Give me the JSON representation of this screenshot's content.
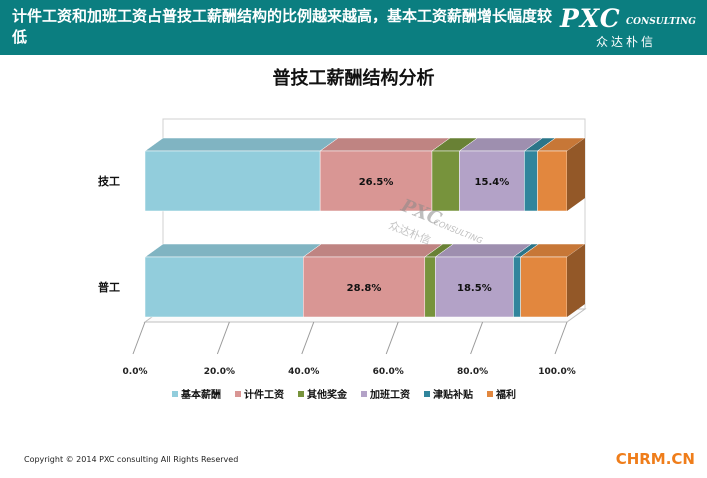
{
  "header": {
    "title": "计件工资和加班工资占普技工薪酬结构的比例越来越高，基本工资薪酬增长幅度较低",
    "logo_main": "PXC",
    "logo_sub": "CONSULTING",
    "logo_cn": "众达朴信"
  },
  "watermark": {
    "line1": "PXC",
    "line2": "CONSULTING",
    "line3": "众达朴信"
  },
  "footer": {
    "copyright": "Copyright © 2014  PXC consulting All Rights Reserved",
    "source": "CHRM.CN"
  },
  "chart_data": {
    "type": "bar",
    "orientation": "horizontal",
    "stacked": "percent",
    "title": "普技工薪酬结构分析",
    "xlabel": "",
    "ylabel": "",
    "xlim": [
      0,
      100
    ],
    "xticks": [
      "0.0%",
      "20.0%",
      "40.0%",
      "60.0%",
      "80.0%",
      "100.0%"
    ],
    "categories": [
      "技工",
      "普工"
    ],
    "series": [
      {
        "name": "基本薪酬",
        "color": "#92cddc",
        "values": [
          41.5,
          37.5
        ]
      },
      {
        "name": "计件工资",
        "color": "#d99694",
        "values": [
          26.5,
          28.8
        ]
      },
      {
        "name": "其他奖金",
        "color": "#77933c",
        "values": [
          6.5,
          2.5
        ]
      },
      {
        "name": "加班工资",
        "color": "#b3a2c7",
        "values": [
          15.4,
          18.5
        ]
      },
      {
        "name": "津贴补贴",
        "color": "#31859c",
        "values": [
          3.1,
          1.7
        ]
      },
      {
        "name": "福利",
        "color": "#e2873e",
        "values": [
          7.0,
          11.0
        ]
      }
    ],
    "data_labels": [
      {
        "series": "计件工资",
        "category": "技工",
        "text": "26.5%"
      },
      {
        "series": "加班工资",
        "category": "技工",
        "text": "15.4%"
      },
      {
        "series": "计件工资",
        "category": "普工",
        "text": "28.8%"
      },
      {
        "series": "加班工资",
        "category": "普工",
        "text": "18.5%"
      }
    ],
    "legend_position": "bottom",
    "gridlines": false,
    "three_d": true
  }
}
